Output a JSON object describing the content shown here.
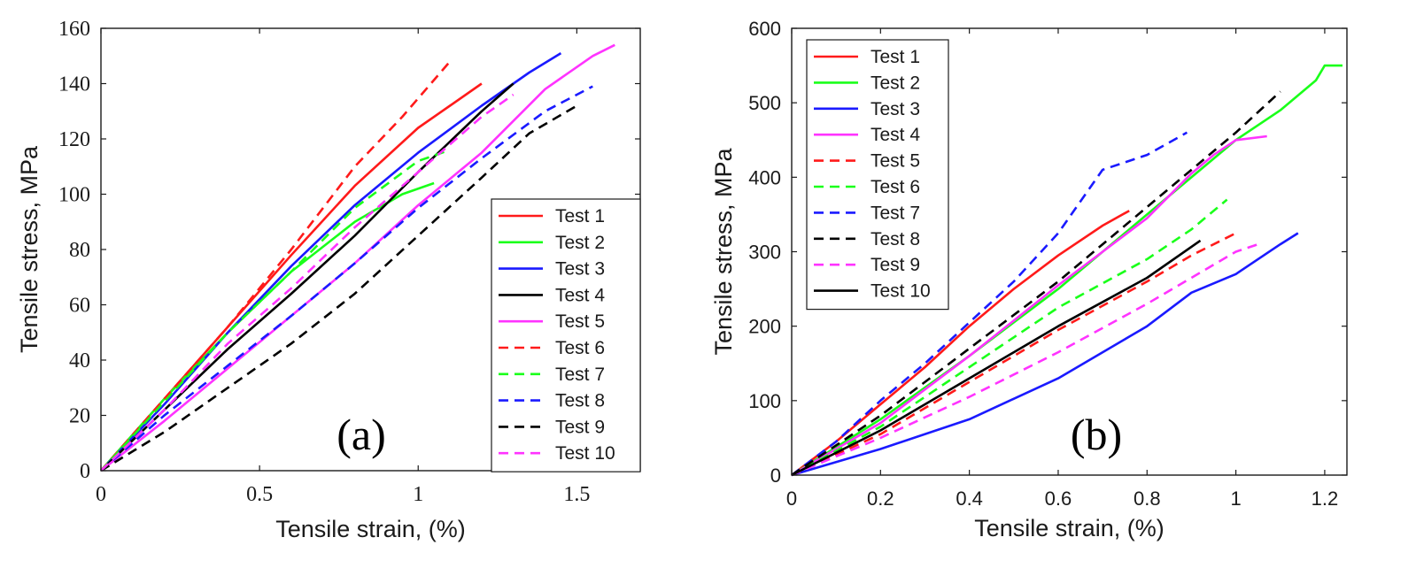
{
  "chart_data": [
    {
      "type": "line",
      "panel_label": "(a)",
      "xlabel": "Tensile strain, (%)",
      "ylabel": "Tensile stress, MPa",
      "xlim": [
        0,
        1.7
      ],
      "ylim": [
        0,
        160
      ],
      "xticks": [
        0,
        0.5,
        1,
        1.5
      ],
      "xtick_labels": [
        "0",
        "0.5",
        "1",
        "1.5"
      ],
      "yticks": [
        0,
        20,
        40,
        60,
        80,
        100,
        120,
        140,
        160
      ],
      "ytick_labels": [
        "0",
        "20",
        "40",
        "60",
        "80",
        "100",
        "120",
        "140",
        "160"
      ],
      "grid": false,
      "legend_position": "lower-right",
      "series": [
        {
          "name": "Test 1",
          "color": "#ff1a1a",
          "dash": "solid",
          "x": [
            0,
            0.2,
            0.4,
            0.6,
            0.8,
            1.0,
            1.1,
            1.2
          ],
          "y": [
            0,
            26,
            52,
            78,
            103,
            124,
            132,
            140
          ]
        },
        {
          "name": "Test 2",
          "color": "#1aff1a",
          "dash": "solid",
          "x": [
            0,
            0.2,
            0.4,
            0.6,
            0.8,
            0.95,
            1.05
          ],
          "y": [
            0,
            26,
            50,
            72,
            90,
            100,
            104
          ]
        },
        {
          "name": "Test 3",
          "color": "#1a1aff",
          "dash": "solid",
          "x": [
            0,
            0.2,
            0.4,
            0.6,
            0.8,
            1.0,
            1.2,
            1.35,
            1.45
          ],
          "y": [
            0,
            24,
            50,
            74,
            96,
            115,
            132,
            144,
            151
          ]
        },
        {
          "name": "Test 4",
          "color": "#000000",
          "dash": "solid",
          "x": [
            0,
            0.2,
            0.4,
            0.6,
            0.8,
            1.0,
            1.2,
            1.3
          ],
          "y": [
            0,
            22,
            44,
            64,
            85,
            108,
            130,
            140
          ]
        },
        {
          "name": "Test 5",
          "color": "#ff33ff",
          "dash": "solid",
          "x": [
            0,
            0.2,
            0.4,
            0.6,
            0.8,
            1.0,
            1.2,
            1.4,
            1.55,
            1.62
          ],
          "y": [
            0,
            18,
            37,
            56,
            75,
            96,
            115,
            138,
            150,
            154
          ]
        },
        {
          "name": "Test 6",
          "color": "#ff1a1a",
          "dash": "dashed",
          "x": [
            0,
            0.2,
            0.4,
            0.6,
            0.8,
            0.95,
            1.1
          ],
          "y": [
            0,
            26,
            52,
            80,
            110,
            128,
            148
          ]
        },
        {
          "name": "Test 7",
          "color": "#1aff1a",
          "dash": "dashed",
          "x": [
            0,
            0.2,
            0.4,
            0.6,
            0.8,
            1.0,
            1.1
          ],
          "y": [
            0,
            25,
            50,
            72,
            95,
            112,
            116
          ]
        },
        {
          "name": "Test 8",
          "color": "#1a1aff",
          "dash": "dashed",
          "x": [
            0,
            0.2,
            0.4,
            0.6,
            0.8,
            1.0,
            1.2,
            1.4,
            1.55
          ],
          "y": [
            0,
            20,
            38,
            56,
            75,
            95,
            113,
            130,
            139
          ]
        },
        {
          "name": "Test 9",
          "color": "#000000",
          "dash": "dashed",
          "x": [
            0,
            0.2,
            0.4,
            0.6,
            0.8,
            1.0,
            1.2,
            1.35,
            1.5
          ],
          "y": [
            0,
            14,
            30,
            46,
            64,
            85,
            106,
            122,
            132
          ]
        },
        {
          "name": "Test 10",
          "color": "#ff33ff",
          "dash": "dashed",
          "x": [
            0,
            0.2,
            0.4,
            0.6,
            0.8,
            1.0,
            1.2,
            1.3
          ],
          "y": [
            0,
            22,
            46,
            66,
            88,
            108,
            128,
            136
          ]
        }
      ]
    },
    {
      "type": "line",
      "panel_label": "(b)",
      "xlabel": "Tensile strain, (%)",
      "ylabel": "Tensile stress, MPa",
      "xlim": [
        0,
        1.25
      ],
      "ylim": [
        0,
        600
      ],
      "xticks": [
        0,
        0.2,
        0.4,
        0.6,
        0.8,
        1,
        1.2
      ],
      "xtick_labels": [
        "0",
        "0.2",
        "0.4",
        "0.6",
        "0.8",
        "1",
        "1.2"
      ],
      "yticks": [
        0,
        100,
        200,
        300,
        400,
        500,
        600
      ],
      "ytick_labels": [
        "0",
        "100",
        "200",
        "300",
        "400",
        "500",
        "600"
      ],
      "grid": false,
      "legend_position": "upper-left",
      "series": [
        {
          "name": "Test 1",
          "color": "#ff1a1a",
          "dash": "solid",
          "x": [
            0,
            0.1,
            0.2,
            0.3,
            0.4,
            0.5,
            0.6,
            0.7,
            0.76
          ],
          "y": [
            0,
            45,
            95,
            145,
            200,
            250,
            295,
            335,
            355
          ]
        },
        {
          "name": "Test 2",
          "color": "#1aff1a",
          "dash": "solid",
          "x": [
            0,
            0.2,
            0.4,
            0.6,
            0.8,
            1.0,
            1.1,
            1.18,
            1.2,
            1.24
          ],
          "y": [
            0,
            75,
            160,
            250,
            350,
            450,
            490,
            530,
            550,
            550
          ]
        },
        {
          "name": "Test 3",
          "color": "#1a1aff",
          "dash": "solid",
          "x": [
            0,
            0.2,
            0.4,
            0.6,
            0.8,
            0.9,
            1.0,
            1.1,
            1.14
          ],
          "y": [
            0,
            35,
            75,
            130,
            200,
            245,
            270,
            310,
            325
          ]
        },
        {
          "name": "Test 4",
          "color": "#ff33ff",
          "dash": "solid",
          "x": [
            0,
            0.2,
            0.4,
            0.6,
            0.8,
            0.9,
            0.95,
            1.0,
            1.07
          ],
          "y": [
            0,
            70,
            160,
            255,
            345,
            405,
            430,
            450,
            455
          ]
        },
        {
          "name": "Test 5",
          "color": "#ff1a1a",
          "dash": "dashed",
          "x": [
            0,
            0.2,
            0.4,
            0.6,
            0.8,
            0.9,
            1.0
          ],
          "y": [
            0,
            55,
            125,
            195,
            260,
            295,
            325
          ]
        },
        {
          "name": "Test 6",
          "color": "#1aff1a",
          "dash": "dashed",
          "x": [
            0,
            0.2,
            0.4,
            0.6,
            0.8,
            0.9,
            0.98
          ],
          "y": [
            0,
            65,
            145,
            225,
            290,
            330,
            370
          ]
        },
        {
          "name": "Test 7",
          "color": "#1a1aff",
          "dash": "dashed",
          "x": [
            0,
            0.1,
            0.2,
            0.3,
            0.4,
            0.5,
            0.6,
            0.7,
            0.8,
            0.89
          ],
          "y": [
            0,
            45,
            100,
            150,
            205,
            260,
            325,
            410,
            430,
            460
          ]
        },
        {
          "name": "Test 8",
          "color": "#000000",
          "dash": "dashed",
          "x": [
            0,
            0.2,
            0.4,
            0.6,
            0.8,
            1.0,
            1.1
          ],
          "y": [
            0,
            80,
            170,
            260,
            360,
            460,
            515
          ]
        },
        {
          "name": "Test 9",
          "color": "#ff33ff",
          "dash": "dashed",
          "x": [
            0,
            0.2,
            0.4,
            0.6,
            0.8,
            1.0,
            1.05
          ],
          "y": [
            0,
            50,
            105,
            165,
            230,
            300,
            310
          ]
        },
        {
          "name": "Test 10",
          "color": "#000000",
          "dash": "solid",
          "x": [
            0,
            0.2,
            0.4,
            0.6,
            0.8,
            0.92
          ],
          "y": [
            0,
            60,
            130,
            200,
            265,
            315
          ]
        }
      ]
    }
  ]
}
